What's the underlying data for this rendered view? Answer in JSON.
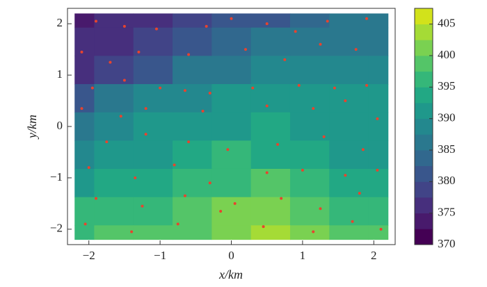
{
  "chart_data": {
    "type": "contour",
    "xlabel": "x/km",
    "ylabel": "y/km",
    "xlim": [
      -2.3,
      2.3
    ],
    "ylim": [
      -2.3,
      2.3
    ],
    "xticks": [
      {
        "value": -2,
        "label": "−2"
      },
      {
        "value": -1,
        "label": "−1"
      },
      0,
      1,
      2
    ],
    "yticks": [
      {
        "value": -2,
        "label": "−2"
      },
      {
        "value": -1,
        "label": "−1"
      },
      0,
      1,
      2
    ],
    "x": [
      -2.2,
      -1.65,
      -1.1,
      -0.55,
      0,
      0.55,
      1.1,
      1.65,
      2.2
    ],
    "y": [
      2.2,
      1.65,
      1.1,
      0.55,
      0,
      -0.55,
      -1.1,
      -1.65,
      -2.2
    ],
    "z": [
      [
        374,
        375,
        376,
        378,
        380,
        382,
        384,
        385,
        385
      ],
      [
        375,
        376,
        378,
        380,
        383,
        385,
        386,
        387,
        387
      ],
      [
        377,
        379,
        382,
        385,
        387,
        388,
        388,
        389,
        389
      ],
      [
        382,
        385,
        388,
        389,
        390,
        392,
        390,
        390,
        390
      ],
      [
        386,
        388,
        390,
        391,
        392,
        393,
        392,
        391,
        391
      ],
      [
        389,
        391,
        392,
        393,
        395,
        394,
        393,
        392,
        392
      ],
      [
        392,
        393,
        394,
        395,
        396,
        398,
        396,
        394,
        393
      ],
      [
        395,
        396,
        397,
        398,
        400,
        400,
        399,
        397,
        396
      ],
      [
        397,
        398,
        399,
        399,
        401,
        403,
        401,
        399,
        398
      ]
    ],
    "zlim": [
      370,
      407.5
    ],
    "zstep": 2.5,
    "colors": [
      "#440154",
      "#481a6c",
      "#472f7d",
      "#414487",
      "#39568c",
      "#31688e",
      "#2a788e",
      "#23888e",
      "#1f988b",
      "#22a884",
      "#35b779",
      "#54c568",
      "#7ad151",
      "#a5db36",
      "#d2e21b"
    ],
    "zticks": [
      370,
      375,
      380,
      385,
      390,
      395,
      400,
      405
    ],
    "points": {
      "color": "#e8432e",
      "x": [
        -1.9,
        -1.5,
        -1.05,
        -0.35,
        0.0,
        0.5,
        0.9,
        1.35,
        1.9,
        -2.1,
        -1.7,
        -1.3,
        -0.6,
        0.2,
        0.75,
        1.25,
        1.75,
        -1.95,
        -1.5,
        -1.0,
        -0.65,
        -0.3,
        0.3,
        0.95,
        1.45,
        1.9,
        -2.1,
        -1.55,
        -1.2,
        -0.4,
        0.5,
        1.15,
        1.6,
        2.05,
        -1.75,
        -1.2,
        -0.6,
        -0.05,
        0.65,
        1.3,
        1.85,
        -2.0,
        -1.35,
        -0.8,
        -0.3,
        0.5,
        1.0,
        1.6,
        2.05,
        -1.9,
        -1.25,
        -0.65,
        0.05,
        0.7,
        1.25,
        1.8,
        -2.05,
        -1.4,
        -0.75,
        -0.15,
        0.45,
        1.15,
        1.7,
        2.1
      ],
      "y": [
        2.05,
        1.95,
        1.9,
        1.95,
        2.1,
        2.0,
        1.85,
        2.05,
        2.1,
        1.45,
        1.25,
        1.45,
        1.4,
        1.5,
        1.3,
        1.6,
        1.5,
        0.75,
        0.9,
        0.75,
        0.7,
        0.65,
        0.75,
        0.8,
        0.75,
        0.8,
        0.35,
        0.2,
        0.35,
        0.3,
        0.4,
        0.35,
        0.5,
        0.15,
        -0.3,
        -0.15,
        -0.3,
        -0.45,
        -0.35,
        -0.2,
        -0.45,
        -0.8,
        -1.0,
        -0.75,
        -1.1,
        -0.9,
        -0.85,
        -0.95,
        -0.85,
        -1.4,
        -1.55,
        -1.35,
        -1.5,
        -1.4,
        -1.6,
        -1.3,
        -1.9,
        -2.05,
        -1.9,
        -1.65,
        -1.95,
        -2.05,
        -1.85,
        -2.0
      ]
    }
  }
}
